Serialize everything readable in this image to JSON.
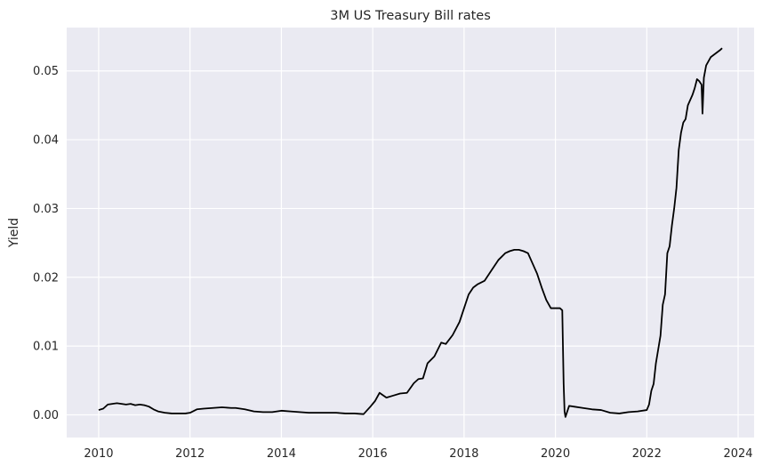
{
  "chart_data": {
    "type": "line",
    "title": "3M US Treasury Bill rates",
    "xlabel": "",
    "ylabel": "Yield",
    "xlim": [
      2009.3,
      2024.35
    ],
    "ylim": [
      -0.0033,
      0.0563
    ],
    "x_ticks": [
      2010,
      2012,
      2014,
      2016,
      2018,
      2020,
      2022,
      2024
    ],
    "x_tick_labels": [
      "2010",
      "2012",
      "2014",
      "2016",
      "2018",
      "2020",
      "2022",
      "2024"
    ],
    "y_ticks": [
      0.0,
      0.01,
      0.02,
      0.03,
      0.04,
      0.05
    ],
    "y_tick_labels": [
      "0.00",
      "0.01",
      "0.02",
      "0.03",
      "0.04",
      "0.05"
    ],
    "grid": true,
    "legend": "none",
    "colors": {
      "background": "#eaeaf2",
      "grid": "#ffffff",
      "line": "#000000"
    },
    "series": [
      {
        "x": [
          2010.0,
          2010.1,
          2010.2,
          2010.3,
          2010.4,
          2010.5,
          2010.6,
          2010.7,
          2010.8,
          2010.9,
          2011.0,
          2011.1,
          2011.2,
          2011.3,
          2011.45,
          2011.6,
          2011.75,
          2011.9,
          2012.0,
          2012.15,
          2012.3,
          2012.5,
          2012.7,
          2012.9,
          2013.0,
          2013.2,
          2013.4,
          2013.6,
          2013.8,
          2014.0,
          2014.2,
          2014.4,
          2014.6,
          2014.8,
          2015.0,
          2015.2,
          2015.4,
          2015.6,
          2015.8,
          2015.95,
          2016.05,
          2016.15,
          2016.3,
          2016.45,
          2016.6,
          2016.75,
          2016.9,
          2017.0,
          2017.1,
          2017.2,
          2017.35,
          2017.5,
          2017.6,
          2017.75,
          2017.9,
          2018.0,
          2018.1,
          2018.2,
          2018.3,
          2018.45,
          2018.6,
          2018.75,
          2018.9,
          2019.0,
          2019.1,
          2019.2,
          2019.3,
          2019.4,
          2019.5,
          2019.6,
          2019.7,
          2019.8,
          2019.9,
          2020.0,
          2020.1,
          2020.15,
          2020.18,
          2020.2,
          2020.22,
          2020.25,
          2020.3,
          2020.4,
          2020.6,
          2020.8,
          2021.0,
          2021.2,
          2021.4,
          2021.6,
          2021.8,
          2022.0,
          2022.05,
          2022.1,
          2022.15,
          2022.2,
          2022.3,
          2022.35,
          2022.4,
          2022.45,
          2022.5,
          2022.55,
          2022.6,
          2022.65,
          2022.7,
          2022.75,
          2022.8,
          2022.85,
          2022.9,
          2023.0,
          2023.05,
          2023.1,
          2023.15,
          2023.2,
          2023.22,
          2023.25,
          2023.3,
          2023.4,
          2023.5,
          2023.6,
          2023.65
        ],
        "y": [
          0.0007,
          0.0009,
          0.0015,
          0.0016,
          0.0017,
          0.0016,
          0.0015,
          0.0016,
          0.0014,
          0.0015,
          0.0014,
          0.0012,
          0.0008,
          0.0005,
          0.0003,
          0.0002,
          0.0002,
          0.0002,
          0.0003,
          0.0008,
          0.0009,
          0.001,
          0.0011,
          0.001,
          0.001,
          0.0008,
          0.0005,
          0.0004,
          0.0004,
          0.0006,
          0.0005,
          0.0004,
          0.0003,
          0.0003,
          0.0003,
          0.0003,
          0.0002,
          0.0002,
          0.0001,
          0.0012,
          0.002,
          0.0032,
          0.0025,
          0.0028,
          0.0031,
          0.0032,
          0.0046,
          0.0052,
          0.0053,
          0.0075,
          0.0085,
          0.0105,
          0.0103,
          0.0116,
          0.0135,
          0.0155,
          0.0175,
          0.0185,
          0.019,
          0.0195,
          0.021,
          0.0225,
          0.0235,
          0.0238,
          0.024,
          0.024,
          0.0238,
          0.0235,
          0.022,
          0.0205,
          0.0185,
          0.0167,
          0.0155,
          0.0155,
          0.0155,
          0.0152,
          0.0045,
          0.0005,
          -0.0003,
          0.0003,
          0.0013,
          0.0012,
          0.001,
          0.0008,
          0.0007,
          0.0003,
          0.0002,
          0.0004,
          0.0005,
          0.0007,
          0.0015,
          0.0035,
          0.0045,
          0.0075,
          0.0115,
          0.016,
          0.0175,
          0.0235,
          0.0245,
          0.0275,
          0.03,
          0.033,
          0.0385,
          0.041,
          0.0425,
          0.043,
          0.045,
          0.0465,
          0.0475,
          0.0488,
          0.0485,
          0.048,
          0.0438,
          0.049,
          0.0508,
          0.052,
          0.0525,
          0.053,
          0.0533
        ]
      }
    ]
  }
}
